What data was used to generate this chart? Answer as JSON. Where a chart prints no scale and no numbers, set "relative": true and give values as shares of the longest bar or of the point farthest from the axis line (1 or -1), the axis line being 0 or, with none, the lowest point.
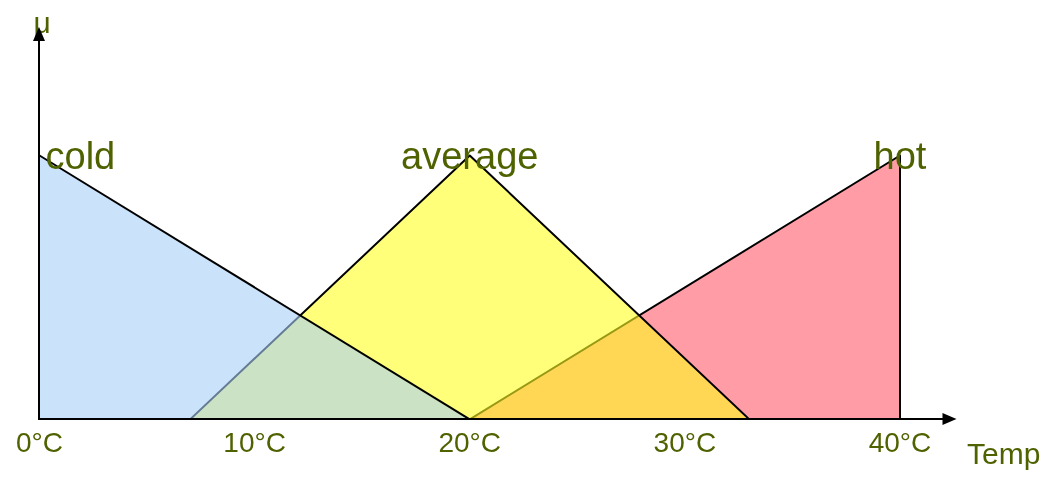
{
  "chart_data": {
    "type": "area",
    "relative": true,
    "xlabel": "Temp",
    "ylabel": "μ",
    "legend": false,
    "grid": false,
    "marker": "none",
    "xlim": [
      0,
      42
    ],
    "xticks": [
      {
        "value": 0,
        "label": "0°C"
      },
      {
        "value": 10,
        "label": "10°C"
      },
      {
        "value": 20,
        "label": "20°C"
      },
      {
        "value": 30,
        "label": "30°C"
      },
      {
        "value": 40,
        "label": "40°C"
      }
    ],
    "series": [
      {
        "name": "cold",
        "color": "#a8cff8",
        "x": [
          0,
          20
        ],
        "values": [
          1,
          0
        ]
      },
      {
        "name": "average",
        "color": "#ffff20",
        "x": [
          7,
          20,
          33
        ],
        "values": [
          0,
          1,
          0
        ]
      },
      {
        "name": "hot",
        "color": "#ff5a6a",
        "x": [
          20,
          40,
          40
        ],
        "values": [
          0,
          1,
          0
        ]
      }
    ]
  }
}
